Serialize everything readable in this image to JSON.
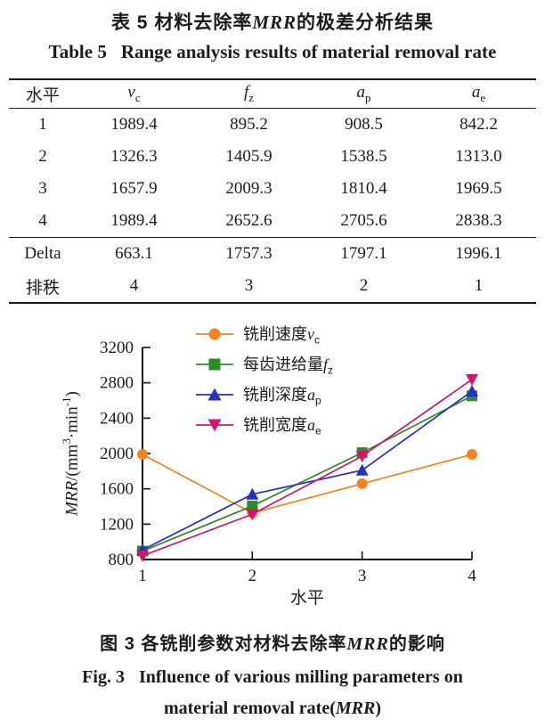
{
  "table_block": {
    "title_zh": {
      "pre": "表 5  材料去除率",
      "italic": "MRR",
      "post": "的极差分析结果"
    },
    "title_en": {
      "label": "Table 5",
      "rest": "Range analysis results of material removal rate"
    },
    "headers": [
      {
        "base": "水平",
        "sub": ""
      },
      {
        "base": "v",
        "sub": "c"
      },
      {
        "base": "f",
        "sub": "z"
      },
      {
        "base": "a",
        "sub": "p"
      },
      {
        "base": "a",
        "sub": "e"
      }
    ],
    "rows": [
      {
        "label": "1",
        "cells": [
          "1989.4",
          "895.2",
          "908.5",
          "842.2"
        ]
      },
      {
        "label": "2",
        "cells": [
          "1326.3",
          "1405.9",
          "1538.5",
          "1313.0"
        ]
      },
      {
        "label": "3",
        "cells": [
          "1657.9",
          "2009.3",
          "1810.4",
          "1969.5"
        ]
      },
      {
        "label": "4",
        "cells": [
          "1989.4",
          "2652.6",
          "2705.6",
          "2838.3"
        ]
      },
      {
        "label": "Delta",
        "cells": [
          "663.1",
          "1757.3",
          "1797.1",
          "1996.1"
        ]
      },
      {
        "label": "排秩",
        "cells": [
          "4",
          "3",
          "2",
          "1"
        ]
      }
    ]
  },
  "chart_data": {
    "type": "line",
    "x": [
      1,
      2,
      3,
      4
    ],
    "xlabel": "水平",
    "ylabel": "MRR/(mm³·min⁻¹)",
    "ylabel_italic": "MRR",
    "ylabel_parts": {
      "p1": "/(mm",
      "sup1": "3",
      "p2": "·min",
      "sup2": "-1",
      "p3": ")"
    },
    "ylim": [
      800,
      3200
    ],
    "yticks": [
      800,
      1200,
      1600,
      2000,
      2400,
      2800,
      3200
    ],
    "grid": false,
    "legend_position": "top-left-inside",
    "axis_color": "#111111",
    "series": [
      {
        "name": "铣削速度vc",
        "legend_prefix": "铣削速度",
        "legend_var": "v",
        "legend_sub": "c",
        "marker": "circle",
        "color": "#F5821F",
        "values": [
          1989.4,
          1326.3,
          1657.9,
          1989.4
        ]
      },
      {
        "name": "每齿进给量fz",
        "legend_prefix": "每齿进给量",
        "legend_var": "f",
        "legend_sub": "z",
        "marker": "square",
        "color": "#2E8B27",
        "values": [
          895.2,
          1405.9,
          2009.3,
          2652.6
        ]
      },
      {
        "name": "铣削深度ap",
        "legend_prefix": "铣削深度",
        "legend_var": "a",
        "legend_sub": "p",
        "marker": "triangle-up",
        "color": "#2433BE",
        "values": [
          908.5,
          1538.5,
          1810.4,
          2705.6
        ]
      },
      {
        "name": "铣削宽度ae",
        "legend_prefix": "铣削宽度",
        "legend_var": "a",
        "legend_sub": "e",
        "marker": "triangle-down",
        "color": "#D2146F",
        "values": [
          842.2,
          1313.0,
          1969.5,
          2838.3
        ]
      }
    ]
  },
  "figure_block": {
    "caption_zh": {
      "pre": "图 3  各铣削参数对材料去除率",
      "italic": "MRR",
      "post": "的影响"
    },
    "caption_en_line1": {
      "label": "Fig. 3",
      "rest": "Influence of various milling parameters on"
    },
    "caption_en_line2": {
      "pre": "material removal rate(",
      "italic": "MRR",
      "post": ")"
    }
  }
}
